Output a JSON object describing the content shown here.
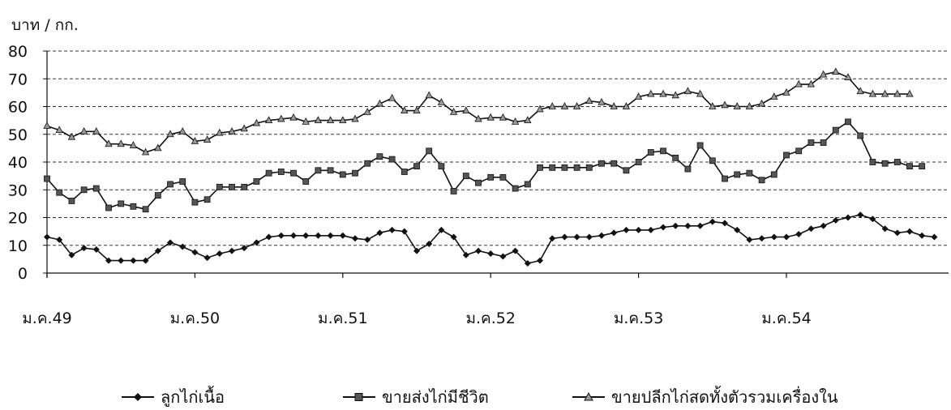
{
  "chart_data": {
    "type": "line",
    "ylabel": "บาท / กก.",
    "ylim": [
      0,
      80
    ],
    "yticks": [
      0,
      10,
      20,
      30,
      40,
      50,
      60,
      70,
      80
    ],
    "grid": "horizontal-dashed",
    "legend_position": "bottom",
    "x_tick_labels": [
      "ม.ค.49",
      "ม.ค.50",
      "ม.ค.51",
      "ม.ค.52",
      "ม.ค.53",
      "ม.ค.54"
    ],
    "x_tick_indices": [
      0,
      12,
      24,
      36,
      48,
      60
    ],
    "series": [
      {
        "name": "ลูกไก่เนื้อ",
        "marker": "diamond",
        "values": [
          13,
          12,
          6.5,
          9,
          8.5,
          4.5,
          4.5,
          4.5,
          4.5,
          8,
          11,
          9.5,
          7.5,
          5.5,
          7,
          8,
          9,
          11,
          13,
          13.5,
          13.5,
          13.5,
          13.5,
          13.5,
          13.5,
          12.5,
          12,
          14.5,
          15.5,
          15,
          8,
          10.5,
          15.5,
          13,
          6.5,
          8,
          7,
          6,
          8,
          3.5,
          4.5,
          12.5,
          13,
          13,
          13,
          13.5,
          14.5,
          15.5,
          15.5,
          15.5,
          16.5,
          17,
          17,
          17,
          18.5,
          18,
          15.5,
          12,
          12.5,
          13,
          13,
          14,
          16,
          17,
          19,
          20,
          21,
          19.5,
          16,
          14.5,
          15,
          13.5,
          13
        ]
      },
      {
        "name": "ขายส่งไก่มีชีวิต",
        "marker": "square",
        "values": [
          34,
          29,
          26,
          30,
          30.5,
          23.5,
          25,
          24,
          23,
          28,
          32,
          33,
          25.5,
          26.5,
          31,
          31,
          31,
          33,
          36,
          36.5,
          36,
          33,
          37,
          37,
          35.5,
          36,
          39.5,
          42,
          41,
          36.5,
          38.5,
          44,
          38.5,
          29.5,
          35,
          32.5,
          34.5,
          34.5,
          30.5,
          32,
          38,
          38,
          38,
          38,
          38,
          39.5,
          39.5,
          37,
          40,
          43.5,
          44,
          41.5,
          37.5,
          46,
          40.5,
          34,
          35.5,
          36,
          33.5,
          35.5,
          42.5,
          44,
          47,
          47,
          51.5,
          54.5,
          49.5,
          40,
          39.5,
          40,
          38.5,
          38.5
        ]
      },
      {
        "name": "ขายปลีกไก่สดทั้งตัวรวมเครื่องใน",
        "marker": "triangle",
        "values": [
          53,
          51.5,
          49,
          51,
          51,
          46.5,
          46.5,
          46,
          43.5,
          45,
          50,
          51,
          47.5,
          48,
          50.5,
          51,
          52,
          54,
          55,
          55.5,
          56,
          54.5,
          55,
          55,
          55,
          55.5,
          58,
          61,
          63,
          58.5,
          58.5,
          64,
          61.5,
          58,
          58.5,
          55.5,
          56,
          56,
          54.5,
          55,
          59,
          60,
          60,
          60,
          62,
          61.5,
          60,
          60,
          63.5,
          64.5,
          64.5,
          64,
          65.5,
          64.5,
          60,
          60.5,
          60,
          60,
          61,
          63.5,
          65,
          68,
          68,
          71.5,
          72.5,
          70.5,
          65.5,
          64.5,
          64.5,
          64.5,
          64.5
        ]
      }
    ]
  }
}
